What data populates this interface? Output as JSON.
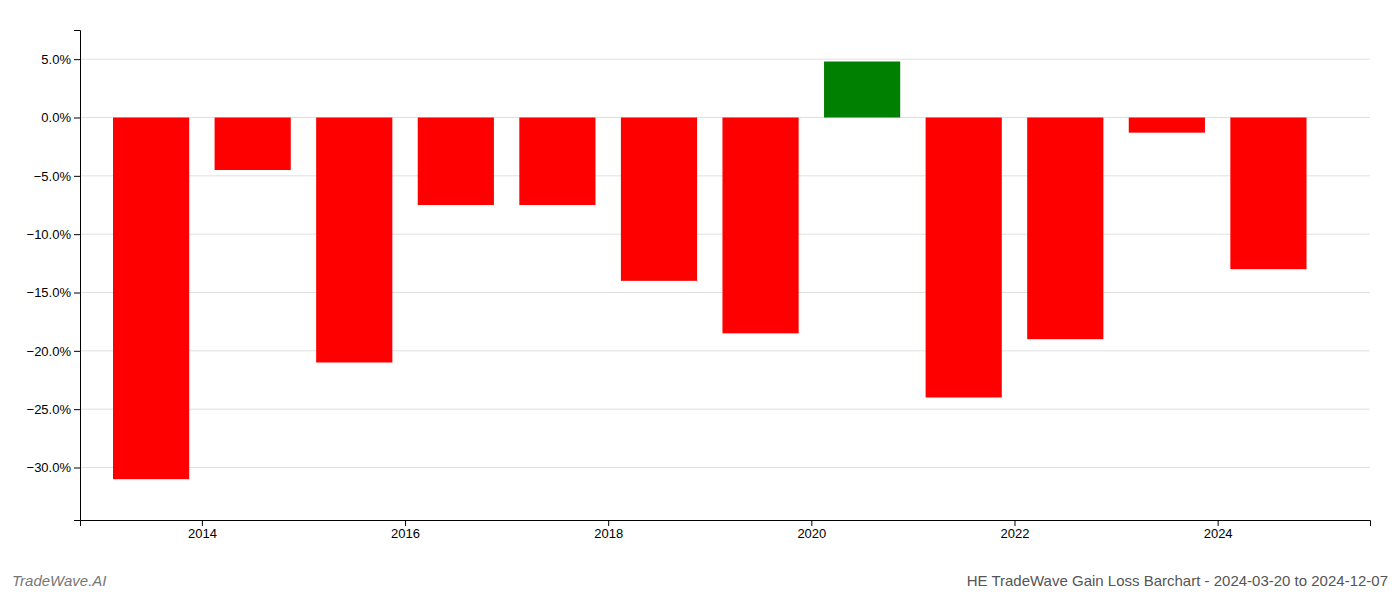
{
  "chart_data": {
    "type": "bar",
    "title": "HE TradeWave Gain Loss Barchart - 2024-03-20 to 2024-12-07",
    "annotations": [
      "TradeWave.AI"
    ],
    "x": [
      2013.5,
      2014.5,
      2015.5,
      2016.5,
      2017.5,
      2018.5,
      2019.5,
      2020.5,
      2021.5,
      2022.5,
      2023.5,
      2024.5
    ],
    "values": [
      -0.31,
      -0.045,
      -0.21,
      -0.075,
      -0.075,
      -0.14,
      -0.185,
      0.048,
      -0.24,
      -0.19,
      -0.013,
      -0.13
    ],
    "colors": [
      "#ff0000",
      "#ff0000",
      "#ff0000",
      "#ff0000",
      "#ff0000",
      "#ff0000",
      "#ff0000",
      "#008000",
      "#ff0000",
      "#ff0000",
      "#ff0000",
      "#ff0000"
    ],
    "xlim": [
      2012.8,
      2025.5
    ],
    "xticks": [
      2014,
      2016,
      2018,
      2020,
      2022,
      2024
    ],
    "ylim": [
      -0.345,
      0.075
    ],
    "yticks": [
      {
        "value": 0.05,
        "label": "5.0%"
      },
      {
        "value": 0.0,
        "label": "0.0%"
      },
      {
        "value": -0.05,
        "label": "−5.0%"
      },
      {
        "value": -0.1,
        "label": "−10.0%"
      },
      {
        "value": -0.15,
        "label": "−15.0%"
      },
      {
        "value": -0.2,
        "label": "−20.0%"
      },
      {
        "value": -0.25,
        "label": "−25.0%"
      },
      {
        "value": -0.3,
        "label": "−30.0%"
      }
    ],
    "grid": true
  }
}
